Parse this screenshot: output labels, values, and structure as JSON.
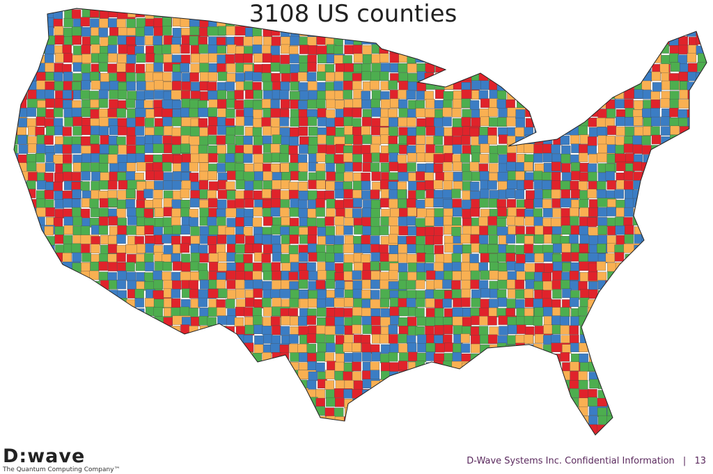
{
  "header": {
    "title": "3108 US counties"
  },
  "logo": {
    "name": "D:wave",
    "tagline": "The Quantum Computing Company™"
  },
  "footer": {
    "note": "D-Wave Systems Inc. Confidential Information",
    "separator": "|",
    "page": "13"
  }
}
